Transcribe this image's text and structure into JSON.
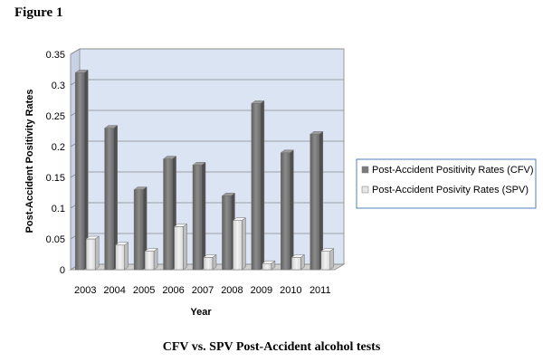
{
  "figure_label": "Figure 1",
  "caption": "CFV vs. SPV Post-Accident alcohol tests",
  "colors": {
    "plot_background": "#dbe4f3",
    "cfv_bar": "#7b7b7b",
    "spv_bar": "#e6e6e6",
    "legend_border": "#4f81bd"
  },
  "chart_data": {
    "type": "bar",
    "title": "",
    "xlabel": "Year",
    "ylabel": "Post-Accident Positivity Rates",
    "ylim": [
      0,
      0.35
    ],
    "yticks": [
      "0",
      "0.05",
      "0.1",
      "0.15",
      "0.2",
      "0.25",
      "0.3",
      "0.35"
    ],
    "categories": [
      "2003",
      "2004",
      "2005",
      "2006",
      "2007",
      "2008",
      "2009",
      "2010",
      "2011"
    ],
    "series": [
      {
        "name": "Post-Accident Positivity Rates (CFV)",
        "values": [
          0.32,
          0.23,
          0.13,
          0.18,
          0.17,
          0.12,
          0.27,
          0.19,
          0.22
        ]
      },
      {
        "name": "Post-Accident Posivity Rates (SPV)",
        "values": [
          0.05,
          0.04,
          0.03,
          0.07,
          0.02,
          0.08,
          0.01,
          0.02,
          0.03
        ]
      }
    ],
    "grid": true,
    "legend_position": "right"
  }
}
